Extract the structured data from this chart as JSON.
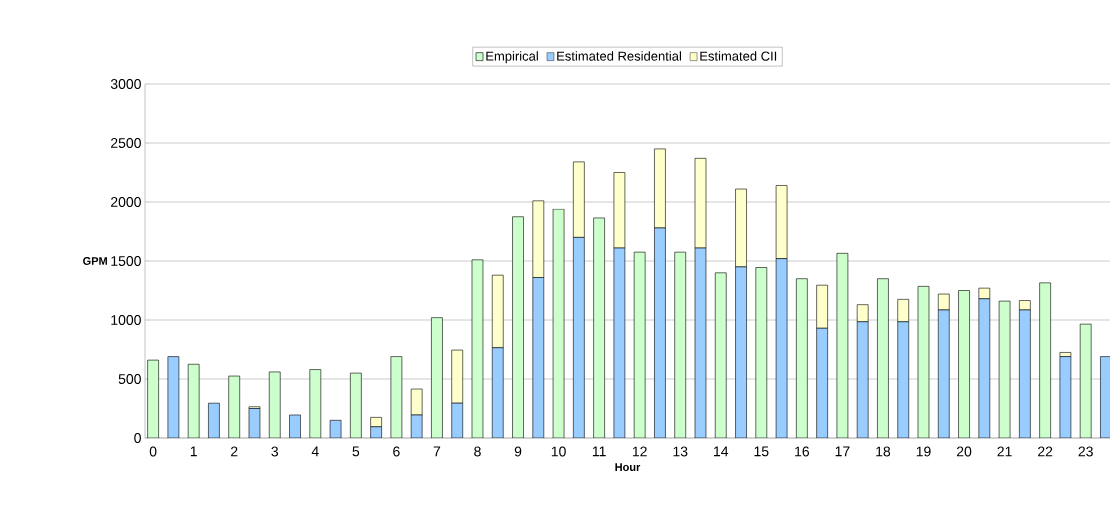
{
  "chart_data": {
    "type": "bar",
    "xlabel": "Hour",
    "ylabel": "GPM",
    "categories": [
      "0",
      null,
      "1",
      null,
      "2",
      null,
      "3",
      null,
      "4",
      null,
      "5",
      null,
      "6",
      null,
      "7",
      null,
      "8",
      null,
      "9",
      null,
      "10",
      null,
      "11",
      null,
      "12",
      null,
      "13",
      null,
      "14",
      null,
      "15",
      null,
      "16",
      null,
      "17",
      null,
      "18",
      null,
      "19",
      null,
      "20",
      null,
      "21",
      null,
      "22",
      null,
      "23",
      null
    ],
    "series": [
      {
        "name": "Empirical",
        "color": "#ccffcc",
        "values": [
          660,
          null,
          625,
          null,
          525,
          null,
          560,
          null,
          580,
          null,
          550,
          null,
          690,
          null,
          1020,
          null,
          1510,
          null,
          1875,
          null,
          1940,
          null,
          1865,
          null,
          1575,
          null,
          1575,
          null,
          1400,
          null,
          1445,
          null,
          1350,
          null,
          1565,
          null,
          1350,
          null,
          1285,
          null,
          1250,
          null,
          1160,
          null,
          1315,
          null,
          965,
          null
        ]
      },
      {
        "name": "Estimated Residential",
        "color": "#99ccff",
        "values": [
          null,
          690,
          null,
          295,
          null,
          250,
          null,
          195,
          null,
          150,
          null,
          95,
          null,
          195,
          null,
          295,
          null,
          765,
          null,
          1360,
          null,
          1700,
          null,
          1610,
          null,
          1780,
          null,
          1610,
          null,
          1450,
          null,
          1520,
          null,
          930,
          null,
          985,
          null,
          985,
          null,
          1085,
          null,
          1180,
          null,
          1085,
          null,
          690,
          null,
          690
        ]
      },
      {
        "name": "Estimated CII",
        "color": "#ffffcc",
        "values": [
          null,
          null,
          null,
          null,
          null,
          15,
          null,
          0,
          null,
          0,
          null,
          80,
          null,
          220,
          null,
          450,
          null,
          615,
          null,
          650,
          null,
          640,
          null,
          640,
          null,
          670,
          null,
          760,
          null,
          660,
          null,
          620,
          null,
          365,
          null,
          145,
          null,
          190,
          null,
          135,
          null,
          90,
          null,
          80,
          null,
          35,
          null,
          null
        ]
      }
    ],
    "stacked": true,
    "ylim": [
      0,
      3000
    ],
    "yticks": [
      0,
      500,
      1000,
      1500,
      2000,
      2500,
      3000
    ],
    "grid": "y",
    "legend": "top"
  }
}
